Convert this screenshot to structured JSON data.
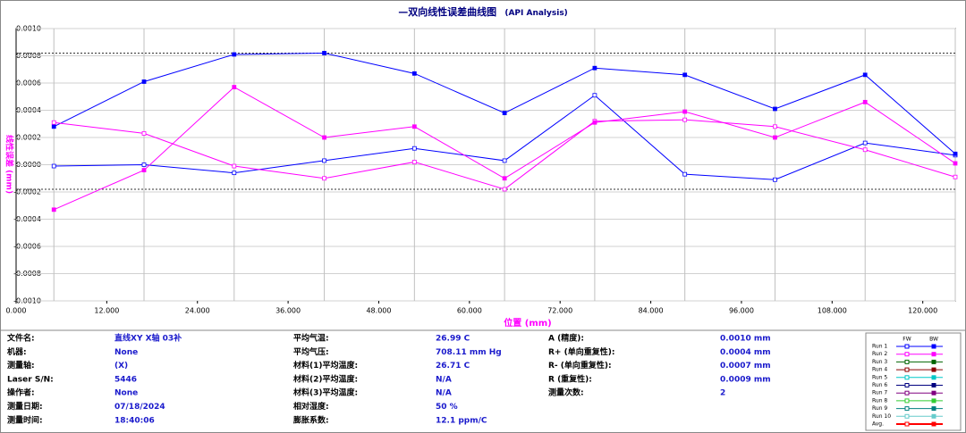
{
  "chart_data": {
    "type": "line",
    "title": "—双向线性误差曲线图",
    "subtitle": "(API Analysis)",
    "x_label": "位置 (mm)",
    "y_label": "线性误差 (mm)",
    "x": [
      5,
      16.93,
      28.86,
      40.79,
      52.72,
      64.65,
      76.58,
      88.51,
      100.44,
      112.37,
      124.3
    ],
    "series": [
      {
        "color": "#0000ff",
        "marker": "open",
        "values": [
          -1e-05,
          0.0,
          -6e-05,
          3e-05,
          0.00012,
          3e-05,
          0.00051,
          -7e-05,
          -0.00011,
          0.00016,
          7e-05
        ]
      },
      {
        "color": "#0000ff",
        "marker": "filled",
        "values": [
          0.00028,
          0.00061,
          0.00081,
          0.00082,
          0.00067,
          0.00038,
          0.00071,
          0.00066,
          0.00041,
          0.00066,
          8e-05
        ]
      },
      {
        "color": "#ff00ff",
        "marker": "open",
        "values": [
          0.00031,
          0.00023,
          -1e-05,
          -0.0001,
          2e-05,
          -0.00018,
          0.00032,
          0.00033,
          0.00028,
          0.00011,
          -9e-05
        ]
      },
      {
        "color": "#ff00ff",
        "marker": "filled",
        "values": [
          -0.00033,
          -4e-05,
          0.00057,
          0.0002,
          0.00028,
          -0.0001,
          0.00031,
          0.00039,
          0.0002,
          0.00046,
          1e-05
        ]
      }
    ],
    "ref_lines": [
      0.00082,
      -0.00018
    ],
    "xlim": [
      0,
      124.3
    ],
    "xticks": [
      {
        "value": 0,
        "label": "0.000"
      },
      {
        "value": 12,
        "label": "12.000"
      },
      {
        "value": 24,
        "label": "24.000"
      },
      {
        "value": 36,
        "label": "36.000"
      },
      {
        "value": 48,
        "label": "48.000"
      },
      {
        "value": 60,
        "label": "60.000"
      },
      {
        "value": 72,
        "label": "72.000"
      },
      {
        "value": 84,
        "label": "84.000"
      },
      {
        "value": 96,
        "label": "96.000"
      },
      {
        "value": 108,
        "label": "108.000"
      },
      {
        "value": 120,
        "label": "120.000"
      }
    ],
    "ylim": [
      -0.001,
      0.001
    ],
    "yticks": [
      {
        "value": 0.001,
        "label": "0.0010"
      },
      {
        "value": 0.0008,
        "label": "0.0008"
      },
      {
        "value": 0.0006,
        "label": "0.0006"
      },
      {
        "value": 0.0004,
        "label": "0.0004"
      },
      {
        "value": 0.0002,
        "label": "0.0002"
      },
      {
        "value": 0,
        "label": "0.0000"
      },
      {
        "value": -0.0002,
        "label": "-0.0002"
      },
      {
        "value": -0.0004,
        "label": "-0.0004"
      },
      {
        "value": -0.0006,
        "label": "-0.0006"
      },
      {
        "value": -0.0008,
        "label": "-0.0008"
      },
      {
        "value": -0.001,
        "label": "-0.0010"
      }
    ],
    "grid": true,
    "legend": {
      "columns": [
        "FW",
        "BW"
      ],
      "entries": [
        {
          "name": "Run 1",
          "color": "#0000ff"
        },
        {
          "name": "Run 2",
          "color": "#ff00ff"
        },
        {
          "name": "Run 3",
          "color": "#006400"
        },
        {
          "name": "Run 4",
          "color": "#8b0000"
        },
        {
          "name": "Run 5",
          "color": "#00c8c8"
        },
        {
          "name": "Run 6",
          "color": "#000080"
        },
        {
          "name": "Run 7",
          "color": "#800080"
        },
        {
          "name": "Run 8",
          "color": "#32cd32"
        },
        {
          "name": "Run 9",
          "color": "#008080"
        },
        {
          "name": "Run 10",
          "color": "#66cccc"
        },
        {
          "name": "Avg.",
          "color": "#ff0000"
        }
      ]
    }
  },
  "info": {
    "columns": [
      [
        {
          "label": "文件名:",
          "value": "直线XY X轴 03补"
        },
        {
          "label": "机器:",
          "value": "None"
        },
        {
          "label": "测量轴:",
          "value": "(X)"
        },
        {
          "label": "Laser S/N:",
          "value": "5446"
        },
        {
          "label": "操作者:",
          "value": "None"
        },
        {
          "label": "测量日期:",
          "value": "07/18/2024"
        },
        {
          "label": "测量时间:",
          "value": "18:40:06"
        }
      ],
      [
        {
          "label": "平均气温:",
          "value": "26.99 C"
        },
        {
          "label": "平均气压:",
          "value": "708.11 mm Hg"
        },
        {
          "label": "材料(1)平均温度:",
          "value": "26.71 C"
        },
        {
          "label": "材料(2)平均温度:",
          "value": "N/A"
        },
        {
          "label": "材料(3)平均温度:",
          "value": "N/A"
        },
        {
          "label": "相对湿度:",
          "value": "50 %"
        },
        {
          "label": "膨胀系数:",
          "value": "12.1 ppm/C"
        }
      ],
      [
        {
          "label": "A (精度):",
          "value": "0.0010 mm"
        },
        {
          "label": "R+ (单向重复性):",
          "value": "0.0004 mm"
        },
        {
          "label": "R- (单向重复性):",
          "value": "0.0007 mm"
        },
        {
          "label": "R (重复性):",
          "value": "0.0009 mm"
        },
        {
          "label": "测量次数:",
          "value": "2"
        }
      ]
    ]
  }
}
